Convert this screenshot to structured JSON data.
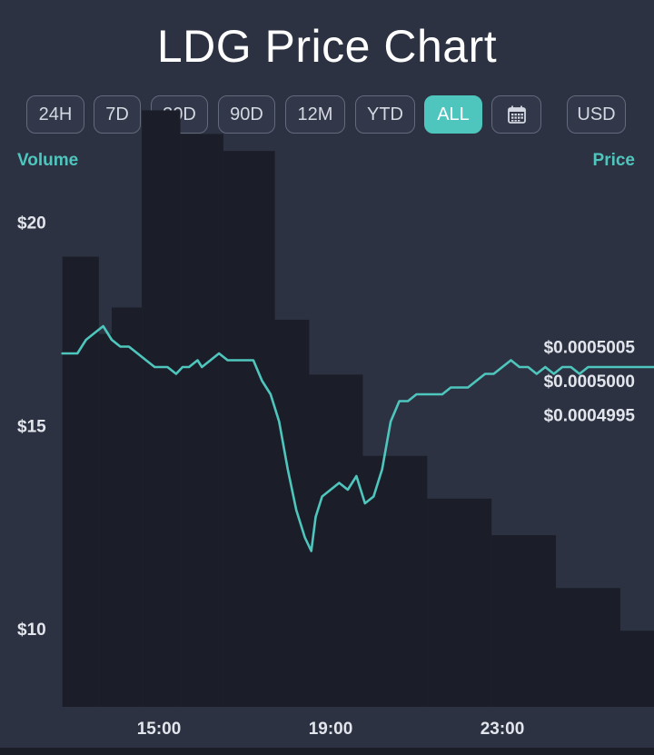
{
  "title": "LDG Price Chart",
  "ranges": [
    {
      "label": "24H",
      "active": false
    },
    {
      "label": "7D",
      "active": false
    },
    {
      "label": "30D",
      "active": false
    },
    {
      "label": "90D",
      "active": false
    },
    {
      "label": "12M",
      "active": false
    },
    {
      "label": "YTD",
      "active": false
    },
    {
      "label": "ALL",
      "active": true
    }
  ],
  "calendar_icon": "calendar-icon",
  "currency": "USD",
  "colors": {
    "accent": "#4fc6bd",
    "background": "#2c3241",
    "volume": "#1b1e28"
  },
  "chart_data": {
    "type": "line",
    "left_axis": {
      "label": "Volume",
      "ticks": [
        "$20",
        "$15",
        "$10"
      ],
      "tick_values": [
        20,
        15,
        10
      ]
    },
    "right_axis": {
      "label": "Price",
      "ticks": [
        "$0.0005005",
        "$0.0005000",
        "$0.0004995"
      ],
      "tick_values": [
        0.0005005,
        0.0005,
        0.0004995
      ]
    },
    "x_ticks": [
      "15:00",
      "19:00",
      "23:00"
    ],
    "volume": {
      "name": "Volume",
      "times": [
        12.75,
        13.6,
        13.9,
        14.6,
        15.5,
        16.5,
        17.7,
        18.5,
        19.75,
        21.25,
        22.75,
        24.25,
        25.75,
        27.2
      ],
      "values": [
        19.15,
        17.25,
        17.9,
        22.75,
        22.17,
        21.75,
        17.6,
        16.25,
        14.25,
        13.2,
        12.3,
        11.0,
        9.95,
        8.95
      ]
    },
    "price": {
      "name": "Price",
      "times": [
        12.75,
        12.9,
        13.1,
        13.3,
        13.5,
        13.7,
        13.9,
        14.1,
        14.3,
        14.5,
        14.7,
        14.9,
        15.05,
        15.2,
        15.4,
        15.55,
        15.7,
        15.9,
        16.0,
        16.2,
        16.4,
        16.6,
        16.8,
        17.0,
        17.2,
        17.4,
        17.6,
        17.8,
        18.0,
        18.2,
        18.4,
        18.55,
        18.65,
        18.8,
        19.0,
        19.2,
        19.4,
        19.6,
        19.8,
        20.0,
        20.2,
        20.4,
        20.6,
        20.8,
        21.0,
        21.2,
        21.4,
        21.6,
        21.8,
        22.0,
        22.2,
        22.4,
        22.6,
        22.8,
        23.0,
        23.2,
        23.4,
        23.6,
        23.8,
        24.0,
        24.2,
        24.4,
        24.6,
        24.8,
        25.0,
        25.2,
        25.4,
        25.6,
        25.8,
        26.0,
        26.2,
        26.4,
        26.6,
        26.8,
        27.0,
        27.2
      ],
      "values": [
        0.0005004,
        0.0005004,
        0.0005004,
        0.0005006,
        0.0005007,
        0.0005008,
        0.0005006,
        0.0005005,
        0.0005005,
        0.0005004,
        0.0005003,
        0.0005002,
        0.0005002,
        0.0005002,
        0.0005001,
        0.0005002,
        0.0005002,
        0.0005003,
        0.0005002,
        0.0005003,
        0.0005004,
        0.0005003,
        0.0005003,
        0.0005003,
        0.0005003,
        0.0005,
        0.0004998,
        0.0004994,
        0.0004987,
        0.0004981,
        0.0004977,
        0.0004975,
        0.000498,
        0.0004983,
        0.0004984,
        0.0004985,
        0.0004984,
        0.0004986,
        0.0004982,
        0.0004983,
        0.0004987,
        0.0004994,
        0.0004997,
        0.0004997,
        0.0004998,
        0.0004998,
        0.0004998,
        0.0004998,
        0.0004999,
        0.0004999,
        0.0004999,
        0.0005,
        0.0005001,
        0.0005001,
        0.0005002,
        0.0005003,
        0.0005002,
        0.0005002,
        0.0005001,
        0.0005002,
        0.0005001,
        0.0005002,
        0.0005002,
        0.0005001,
        0.0005002,
        0.0005002,
        0.0005002,
        0.0005002,
        0.0005002,
        0.0005002,
        0.0005002,
        0.0005002,
        0.0005002,
        0.0005002,
        0.0005002,
        0.0005002
      ]
    }
  }
}
